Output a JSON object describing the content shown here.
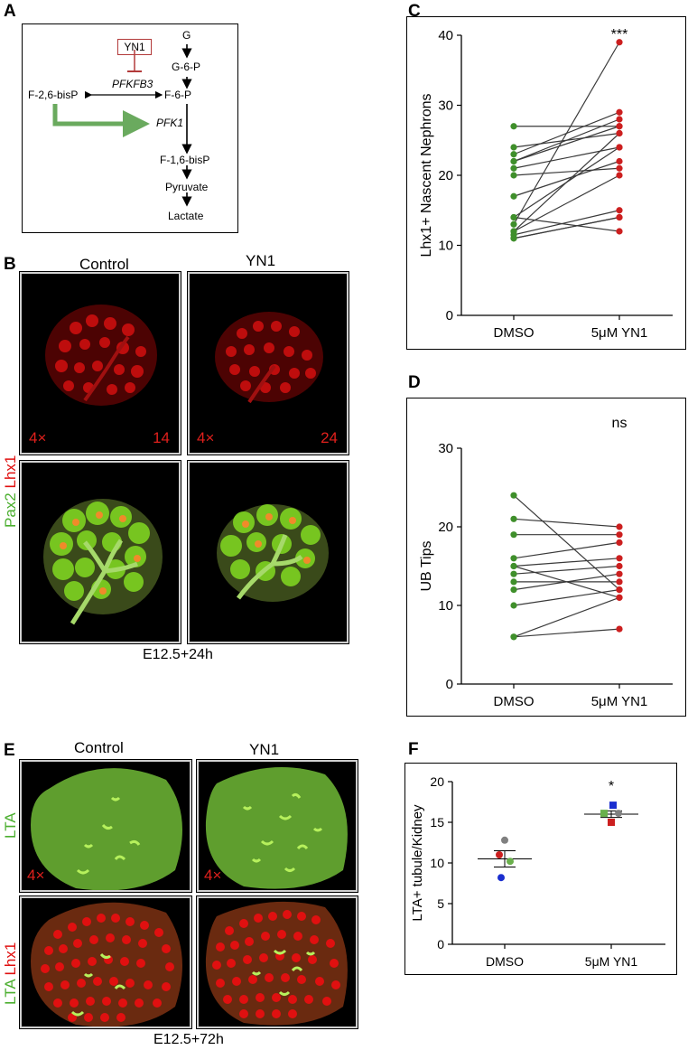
{
  "panels": {
    "A": {
      "label": "A",
      "inhibitor": "YN1",
      "enzyme_inhibited": "PFKFB3",
      "activated_enzyme": "PFK1",
      "side_metabolite": "F-2,6-bisP",
      "pathway": [
        "G",
        "G-6-P",
        "F-6-P",
        "F-1,6-bisP",
        "Pyruvate",
        "Lactate"
      ]
    },
    "B": {
      "label": "B",
      "col_headers": [
        "Control",
        "YN1"
      ],
      "row_labels": {
        "pax2": "Pax2",
        "lhx1": "Lhx1"
      },
      "magnification": [
        "4×",
        "4×"
      ],
      "counts": [
        "14",
        "24"
      ],
      "caption": "E12.5+24h"
    },
    "E": {
      "label": "E",
      "col_headers": [
        "Control",
        "YN1"
      ],
      "row_labels": {
        "lta": "LTA",
        "lhx1": "Lhx1"
      },
      "magnification": [
        "4×",
        "4×"
      ],
      "caption": "E12.5+72h"
    },
    "C": {
      "label": "C"
    },
    "D": {
      "label": "D"
    },
    "F": {
      "label": "F"
    }
  },
  "colors": {
    "dmso_point": "#3f8f2b",
    "yn1_point": "#cc1f1f",
    "green_arrow": "#6aaa5e",
    "inhibit": "#b23a3a",
    "fluor_red": "#e01010",
    "fluor_green": "#6ec21c"
  },
  "chart_data": [
    {
      "id": "C",
      "type": "scatter",
      "subtype": "paired-lines",
      "ylabel": "Lhx1+ Nascent Nephrons",
      "categories": [
        "DMSO",
        "5μM YN1"
      ],
      "ylim": [
        0,
        40
      ],
      "yticks": [
        0,
        10,
        20,
        30,
        40
      ],
      "significance": "***",
      "pairs": [
        [
          27,
          27
        ],
        [
          24,
          26
        ],
        [
          23,
          29
        ],
        [
          22,
          28
        ],
        [
          22,
          27
        ],
        [
          21,
          24
        ],
        [
          20,
          21
        ],
        [
          17,
          22
        ],
        [
          14,
          24
        ],
        [
          13,
          39
        ],
        [
          12,
          26
        ],
        [
          12,
          20
        ],
        [
          11.5,
          15
        ],
        [
          11,
          14
        ],
        [
          11,
          14
        ],
        [
          14,
          12
        ]
      ]
    },
    {
      "id": "D",
      "type": "scatter",
      "subtype": "paired-lines",
      "ylabel": "UB Tips",
      "categories": [
        "DMSO",
        "5μM YN1"
      ],
      "ylim": [
        0,
        30
      ],
      "yticks": [
        0,
        10,
        20,
        30
      ],
      "significance": "ns",
      "pairs": [
        [
          24,
          12
        ],
        [
          21,
          20
        ],
        [
          19,
          19
        ],
        [
          16,
          18
        ],
        [
          15,
          16
        ],
        [
          15,
          11
        ],
        [
          14,
          15
        ],
        [
          13,
          13
        ],
        [
          12,
          14
        ],
        [
          10,
          12
        ],
        [
          6,
          11
        ],
        [
          6,
          7
        ]
      ]
    },
    {
      "id": "F",
      "type": "scatter",
      "subtype": "mean-sem",
      "ylabel": "LTA+ tubule/Kidney",
      "categories": [
        "DMSO",
        "5μM YN1"
      ],
      "ylim": [
        0,
        20
      ],
      "yticks": [
        0,
        5,
        10,
        15,
        20
      ],
      "significance": "*",
      "groups": [
        {
          "mean": 10.5,
          "sem": 1.0,
          "points": [
            {
              "value": 12.8,
              "color": "#808080",
              "shape": "circle"
            },
            {
              "value": 11.0,
              "color": "#cc1f1f",
              "shape": "circle"
            },
            {
              "value": 10.2,
              "color": "#6ab04c",
              "shape": "circle"
            },
            {
              "value": 8.2,
              "color": "#1a2ecf",
              "shape": "circle"
            }
          ]
        },
        {
          "mean": 16.0,
          "sem": 0.4,
          "points": [
            {
              "value": 17.1,
              "color": "#1a2ecf",
              "shape": "square"
            },
            {
              "value": 16.1,
              "color": "#6ab04c",
              "shape": "square"
            },
            {
              "value": 16.1,
              "color": "#808080",
              "shape": "circle"
            },
            {
              "value": 15.0,
              "color": "#cc1f1f",
              "shape": "square"
            }
          ]
        }
      ]
    }
  ]
}
